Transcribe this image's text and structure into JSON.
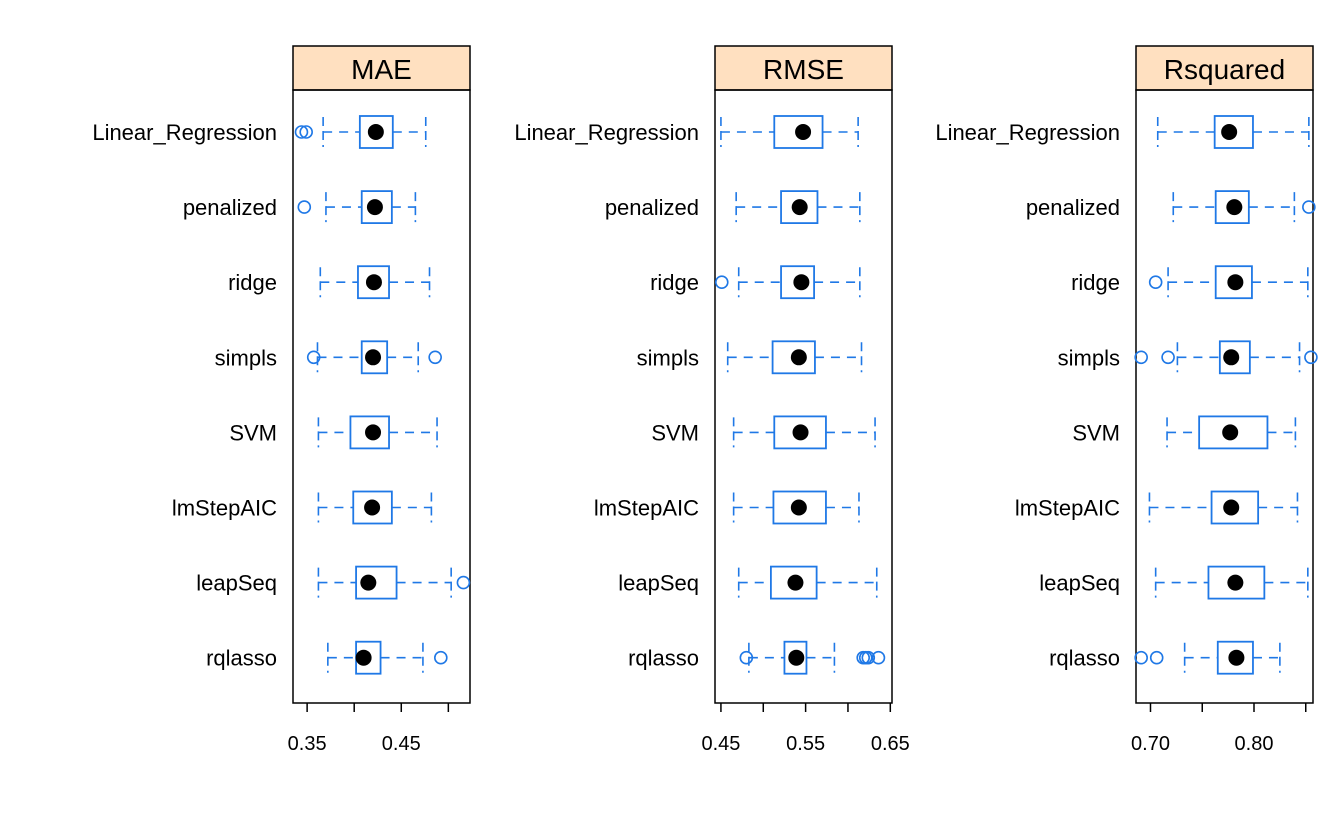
{
  "chart_data": {
    "type": "boxplot",
    "categories": [
      "Linear_Regression",
      "penalized",
      "ridge",
      "simpls",
      "SVM",
      "lmStepAIC",
      "leapSeq",
      "rqlasso"
    ],
    "colors": {
      "box": "#1f78e6",
      "median": "#000000",
      "strip": "#ffe0c0",
      "frame": "#000000"
    },
    "panels": [
      {
        "name": "MAE",
        "xlim": [
          0.335,
          0.523
        ],
        "ticks": [
          0.35,
          0.4,
          0.45,
          0.5
        ],
        "tick_labels": [
          "0.35",
          "",
          "0.45",
          ""
        ],
        "boxes": [
          {
            "category": "Linear_Regression",
            "whisker_low": 0.367,
            "q1": 0.406,
            "median": 0.423,
            "q3": 0.441,
            "whisker_high": 0.476,
            "outliers": [
              0.344,
              0.349
            ]
          },
          {
            "category": "penalized",
            "whisker_low": 0.37,
            "q1": 0.408,
            "median": 0.422,
            "q3": 0.44,
            "whisker_high": 0.465,
            "outliers": [
              0.347
            ]
          },
          {
            "category": "ridge",
            "whisker_low": 0.364,
            "q1": 0.404,
            "median": 0.421,
            "q3": 0.437,
            "whisker_high": 0.48,
            "outliers": []
          },
          {
            "category": "simpls",
            "whisker_low": 0.361,
            "q1": 0.408,
            "median": 0.42,
            "q3": 0.435,
            "whisker_high": 0.468,
            "outliers": [
              0.357,
              0.486
            ]
          },
          {
            "category": "SVM",
            "whisker_low": 0.362,
            "q1": 0.396,
            "median": 0.42,
            "q3": 0.437,
            "whisker_high": 0.488,
            "outliers": []
          },
          {
            "category": "lmStepAIC",
            "whisker_low": 0.362,
            "q1": 0.399,
            "median": 0.419,
            "q3": 0.44,
            "whisker_high": 0.482,
            "outliers": []
          },
          {
            "category": "leapSeq",
            "whisker_low": 0.362,
            "q1": 0.402,
            "median": 0.415,
            "q3": 0.445,
            "whisker_high": 0.503,
            "outliers": [
              0.516
            ]
          },
          {
            "category": "rqlasso",
            "whisker_low": 0.372,
            "q1": 0.402,
            "median": 0.41,
            "q3": 0.428,
            "whisker_high": 0.473,
            "outliers": [
              0.492
            ]
          }
        ]
      },
      {
        "name": "RMSE",
        "xlim": [
          0.443,
          0.652
        ],
        "ticks": [
          0.45,
          0.5,
          0.55,
          0.6,
          0.65
        ],
        "tick_labels": [
          "0.45",
          "",
          "0.55",
          "",
          "0.65"
        ],
        "boxes": [
          {
            "category": "Linear_Regression",
            "whisker_low": 0.45,
            "q1": 0.513,
            "median": 0.547,
            "q3": 0.57,
            "whisker_high": 0.612,
            "outliers": []
          },
          {
            "category": "penalized",
            "whisker_low": 0.468,
            "q1": 0.521,
            "median": 0.543,
            "q3": 0.564,
            "whisker_high": 0.614,
            "outliers": []
          },
          {
            "category": "ridge",
            "whisker_low": 0.471,
            "q1": 0.521,
            "median": 0.545,
            "q3": 0.56,
            "whisker_high": 0.614,
            "outliers": [
              0.451
            ]
          },
          {
            "category": "simpls",
            "whisker_low": 0.458,
            "q1": 0.511,
            "median": 0.542,
            "q3": 0.561,
            "whisker_high": 0.616,
            "outliers": []
          },
          {
            "category": "SVM",
            "whisker_low": 0.465,
            "q1": 0.513,
            "median": 0.544,
            "q3": 0.574,
            "whisker_high": 0.632,
            "outliers": []
          },
          {
            "category": "lmStepAIC",
            "whisker_low": 0.465,
            "q1": 0.512,
            "median": 0.542,
            "q3": 0.574,
            "whisker_high": 0.613,
            "outliers": []
          },
          {
            "category": "leapSeq",
            "whisker_low": 0.471,
            "q1": 0.509,
            "median": 0.538,
            "q3": 0.563,
            "whisker_high": 0.634,
            "outliers": []
          },
          {
            "category": "rqlasso",
            "whisker_low": 0.483,
            "q1": 0.525,
            "median": 0.539,
            "q3": 0.551,
            "whisker_high": 0.584,
            "outliers": [
              0.48,
              0.618,
              0.621,
              0.624,
              0.636
            ]
          }
        ]
      },
      {
        "name": "Rsquared",
        "xlim": [
          0.686,
          0.857
        ],
        "ticks": [
          0.7,
          0.75,
          0.8,
          0.85
        ],
        "tick_labels": [
          "0.70",
          "",
          "0.80",
          ""
        ],
        "boxes": [
          {
            "category": "Linear_Regression",
            "whisker_low": 0.707,
            "q1": 0.762,
            "median": 0.776,
            "q3": 0.799,
            "whisker_high": 0.853,
            "outliers": []
          },
          {
            "category": "penalized",
            "whisker_low": 0.722,
            "q1": 0.763,
            "median": 0.781,
            "q3": 0.795,
            "whisker_high": 0.839,
            "outliers": [
              0.853
            ]
          },
          {
            "category": "ridge",
            "whisker_low": 0.717,
            "q1": 0.763,
            "median": 0.782,
            "q3": 0.798,
            "whisker_high": 0.852,
            "outliers": [
              0.705
            ]
          },
          {
            "category": "simpls",
            "whisker_low": 0.726,
            "q1": 0.767,
            "median": 0.778,
            "q3": 0.796,
            "whisker_high": 0.844,
            "outliers": [
              0.691,
              0.717,
              0.855
            ]
          },
          {
            "category": "SVM",
            "whisker_low": 0.716,
            "q1": 0.747,
            "median": 0.777,
            "q3": 0.813,
            "whisker_high": 0.84,
            "outliers": []
          },
          {
            "category": "lmStepAIC",
            "whisker_low": 0.699,
            "q1": 0.759,
            "median": 0.778,
            "q3": 0.804,
            "whisker_high": 0.842,
            "outliers": []
          },
          {
            "category": "leapSeq",
            "whisker_low": 0.705,
            "q1": 0.756,
            "median": 0.782,
            "q3": 0.81,
            "whisker_high": 0.852,
            "outliers": []
          },
          {
            "category": "rqlasso",
            "whisker_low": 0.733,
            "q1": 0.765,
            "median": 0.783,
            "q3": 0.799,
            "whisker_high": 0.825,
            "outliers": [
              0.691,
              0.706
            ]
          }
        ]
      }
    ]
  }
}
